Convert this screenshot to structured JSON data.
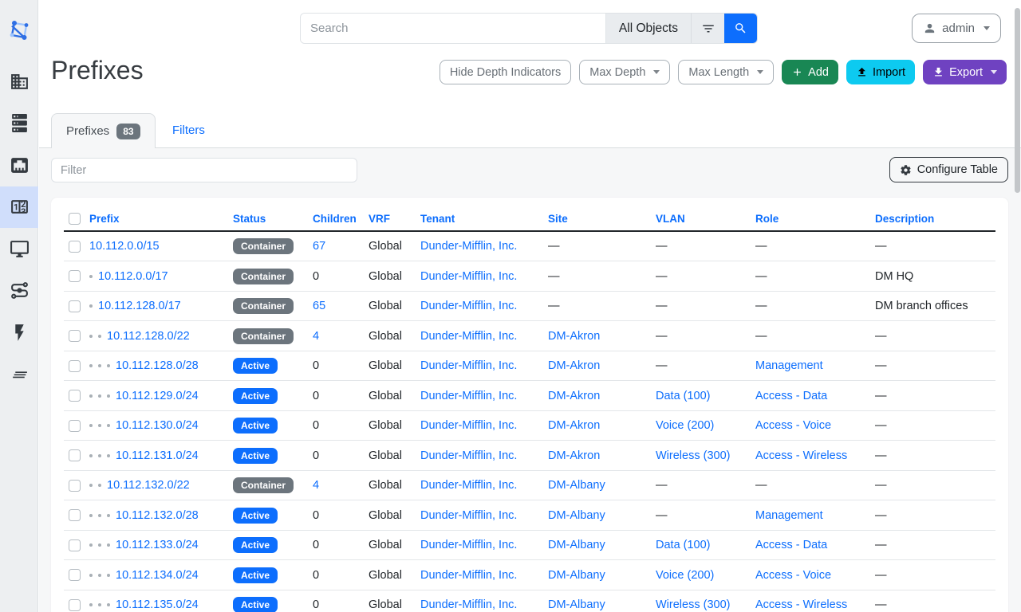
{
  "sidebar": {
    "items": [
      {
        "icon": "netbox-logo"
      },
      {
        "icon": "organization-icon"
      },
      {
        "icon": "devices-icon"
      },
      {
        "icon": "connections-icon"
      },
      {
        "icon": "ipam-icon",
        "active": true
      },
      {
        "icon": "virtualization-icon"
      },
      {
        "icon": "circuits-icon"
      },
      {
        "icon": "power-icon"
      },
      {
        "icon": "operations-icon"
      }
    ]
  },
  "topbar": {
    "search_placeholder": "Search",
    "scope_label": "All Objects",
    "user": "admin"
  },
  "page": {
    "title": "Prefixes"
  },
  "toolbar": {
    "hide_depth": "Hide Depth Indicators",
    "max_depth": "Max Depth",
    "max_length": "Max Length",
    "add": "Add",
    "import": "Import",
    "export": "Export"
  },
  "tabs": {
    "prefixes_label": "Prefixes",
    "prefixes_count": "83",
    "filters_label": "Filters"
  },
  "table_controls": {
    "filter_placeholder": "Filter",
    "configure": "Configure Table"
  },
  "table": {
    "headers": [
      "Prefix",
      "Status",
      "Children",
      "VRF",
      "Tenant",
      "Site",
      "VLAN",
      "Role",
      "Description"
    ],
    "rows": [
      {
        "depth": 0,
        "prefix": "10.112.0.0/15",
        "status": "Container",
        "children": "67",
        "vrf": "Global",
        "tenant": "Dunder-Mifflin, Inc.",
        "site": "—",
        "vlan": "—",
        "role": "—",
        "description": "—"
      },
      {
        "depth": 1,
        "prefix": "10.112.0.0/17",
        "status": "Container",
        "children": "0",
        "vrf": "Global",
        "tenant": "Dunder-Mifflin, Inc.",
        "site": "—",
        "vlan": "—",
        "role": "—",
        "description": "DM HQ"
      },
      {
        "depth": 1,
        "prefix": "10.112.128.0/17",
        "status": "Container",
        "children": "65",
        "vrf": "Global",
        "tenant": "Dunder-Mifflin, Inc.",
        "site": "—",
        "vlan": "—",
        "role": "—",
        "description": "DM branch offices"
      },
      {
        "depth": 2,
        "prefix": "10.112.128.0/22",
        "status": "Container",
        "children": "4",
        "vrf": "Global",
        "tenant": "Dunder-Mifflin, Inc.",
        "site": "DM-Akron",
        "vlan": "—",
        "role": "—",
        "description": "—"
      },
      {
        "depth": 3,
        "prefix": "10.112.128.0/28",
        "status": "Active",
        "children": "0",
        "vrf": "Global",
        "tenant": "Dunder-Mifflin, Inc.",
        "site": "DM-Akron",
        "vlan": "—",
        "role": "Management",
        "description": "—"
      },
      {
        "depth": 3,
        "prefix": "10.112.129.0/24",
        "status": "Active",
        "children": "0",
        "vrf": "Global",
        "tenant": "Dunder-Mifflin, Inc.",
        "site": "DM-Akron",
        "vlan": "Data (100)",
        "role": "Access - Data",
        "description": "—"
      },
      {
        "depth": 3,
        "prefix": "10.112.130.0/24",
        "status": "Active",
        "children": "0",
        "vrf": "Global",
        "tenant": "Dunder-Mifflin, Inc.",
        "site": "DM-Akron",
        "vlan": "Voice (200)",
        "role": "Access - Voice",
        "description": "—"
      },
      {
        "depth": 3,
        "prefix": "10.112.131.0/24",
        "status": "Active",
        "children": "0",
        "vrf": "Global",
        "tenant": "Dunder-Mifflin, Inc.",
        "site": "DM-Akron",
        "vlan": "Wireless (300)",
        "role": "Access - Wireless",
        "description": "—"
      },
      {
        "depth": 2,
        "prefix": "10.112.132.0/22",
        "status": "Container",
        "children": "4",
        "vrf": "Global",
        "tenant": "Dunder-Mifflin, Inc.",
        "site": "DM-Albany",
        "vlan": "—",
        "role": "—",
        "description": "—"
      },
      {
        "depth": 3,
        "prefix": "10.112.132.0/28",
        "status": "Active",
        "children": "0",
        "vrf": "Global",
        "tenant": "Dunder-Mifflin, Inc.",
        "site": "DM-Albany",
        "vlan": "—",
        "role": "Management",
        "description": "—"
      },
      {
        "depth": 3,
        "prefix": "10.112.133.0/24",
        "status": "Active",
        "children": "0",
        "vrf": "Global",
        "tenant": "Dunder-Mifflin, Inc.",
        "site": "DM-Albany",
        "vlan": "Data (100)",
        "role": "Access - Data",
        "description": "—"
      },
      {
        "depth": 3,
        "prefix": "10.112.134.0/24",
        "status": "Active",
        "children": "0",
        "vrf": "Global",
        "tenant": "Dunder-Mifflin, Inc.",
        "site": "DM-Albany",
        "vlan": "Voice (200)",
        "role": "Access - Voice",
        "description": "—"
      },
      {
        "depth": 3,
        "prefix": "10.112.135.0/24",
        "status": "Active",
        "children": "0",
        "vrf": "Global",
        "tenant": "Dunder-Mifflin, Inc.",
        "site": "DM-Albany",
        "vlan": "Wireless (300)",
        "role": "Access - Wireless",
        "description": "—"
      }
    ]
  },
  "colors": {
    "link": "#0d6efd",
    "badge_active": "#0d6efd",
    "badge_container": "#6c757d",
    "add_button": "#198754",
    "import_button": "#0dcaf0",
    "export_button": "#6f42c1",
    "sidebar_active": "#d0defb"
  }
}
